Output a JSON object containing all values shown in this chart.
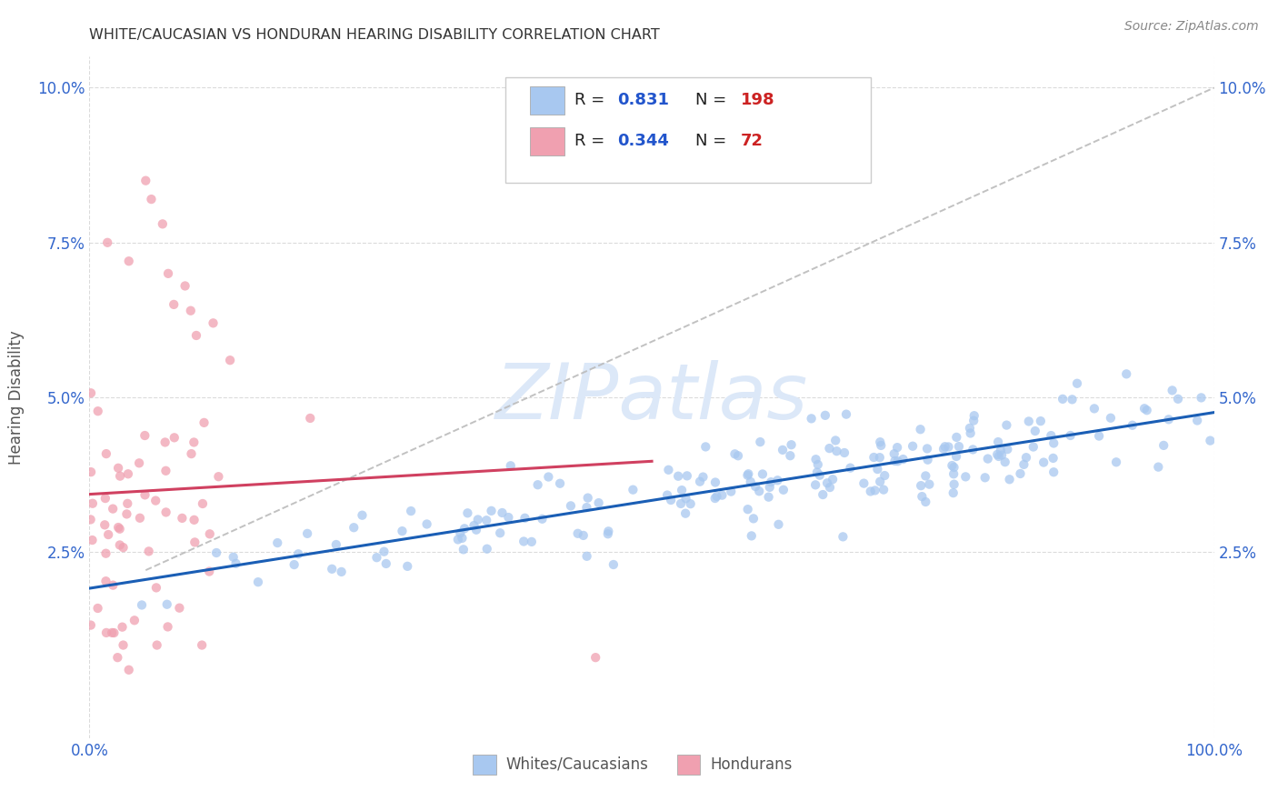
{
  "title": "WHITE/CAUCASIAN VS HONDURAN HEARING DISABILITY CORRELATION CHART",
  "source": "Source: ZipAtlas.com",
  "xlabel_white": "Whites/Caucasians",
  "xlabel_honduran": "Hondurans",
  "ylabel": "Hearing Disability",
  "xmin": 0.0,
  "xmax": 1.0,
  "ymin": 0.0,
  "ymax": 0.105,
  "yticks": [
    0.025,
    0.05,
    0.075,
    0.1
  ],
  "ytick_labels": [
    "2.5%",
    "5.0%",
    "7.5%",
    "10.0%"
  ],
  "white_R": 0.831,
  "white_N": 198,
  "honduran_R": 0.344,
  "honduran_N": 72,
  "white_color": "#a8c8f0",
  "honduran_color": "#f0a0b0",
  "white_line_color": "#1a5eb5",
  "honduran_line_color": "#d04060",
  "trend_line_color": "#bbbbbb",
  "background_color": "#ffffff",
  "grid_color": "#cccccc",
  "title_color": "#333333",
  "axis_tick_color": "#3366cc",
  "watermark_color": "#dce8f8",
  "watermark_text": "ZIPatlas"
}
